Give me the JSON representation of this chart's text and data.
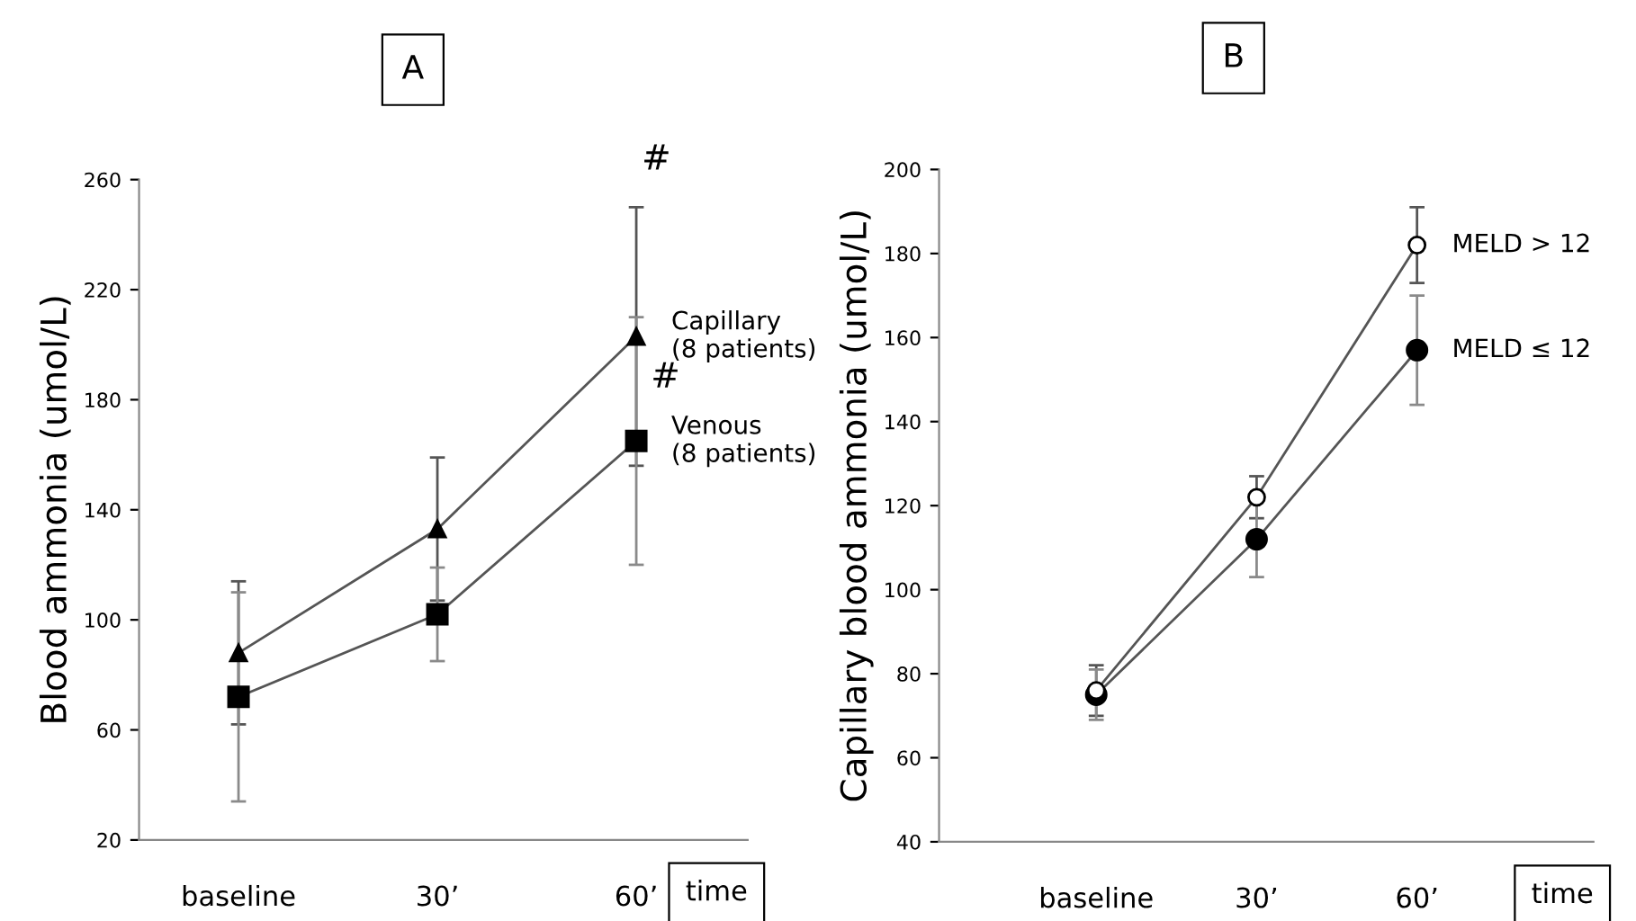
{
  "chart_data": [
    {
      "type": "line",
      "title": "A",
      "ylabel": "Blood ammonia (umol/L)",
      "xlabel": "time",
      "categories": [
        "baseline",
        "30’",
        "60’"
      ],
      "ylim": [
        20,
        260
      ],
      "yticks": [
        20,
        60,
        100,
        140,
        180,
        220,
        260
      ],
      "legend": false,
      "series": [
        {
          "name": "Capillary\n(8 patients)",
          "color": "#000000",
          "marker": "triangle",
          "values": [
            88,
            133,
            203
          ],
          "errors": [
            26,
            26,
            47
          ]
        },
        {
          "name": "Venous\n(8 patients)",
          "color": "#000000",
          "marker": "square",
          "values": [
            72,
            102,
            165
          ],
          "errors": [
            38,
            17,
            45
          ]
        }
      ],
      "annotations": [
        "#",
        "#"
      ]
    },
    {
      "type": "line",
      "title": "B",
      "ylabel": "Capillary blood ammonia (umol/L)",
      "xlabel": "time",
      "categories": [
        "baseline",
        "30’",
        "60’"
      ],
      "ylim": [
        40,
        200
      ],
      "yticks": [
        40,
        60,
        80,
        100,
        120,
        140,
        160,
        180,
        200
      ],
      "legend": false,
      "series": [
        {
          "name": "MELD > 12",
          "color": "#ffffff",
          "marker": "circle",
          "values": [
            76,
            122,
            182
          ],
          "errors": [
            6,
            5,
            9
          ]
        },
        {
          "name": "MELD ≤ 12",
          "color": "#000000",
          "marker": "circle",
          "values": [
            75,
            112,
            157
          ],
          "errors": [
            6,
            9,
            13
          ]
        }
      ]
    }
  ]
}
